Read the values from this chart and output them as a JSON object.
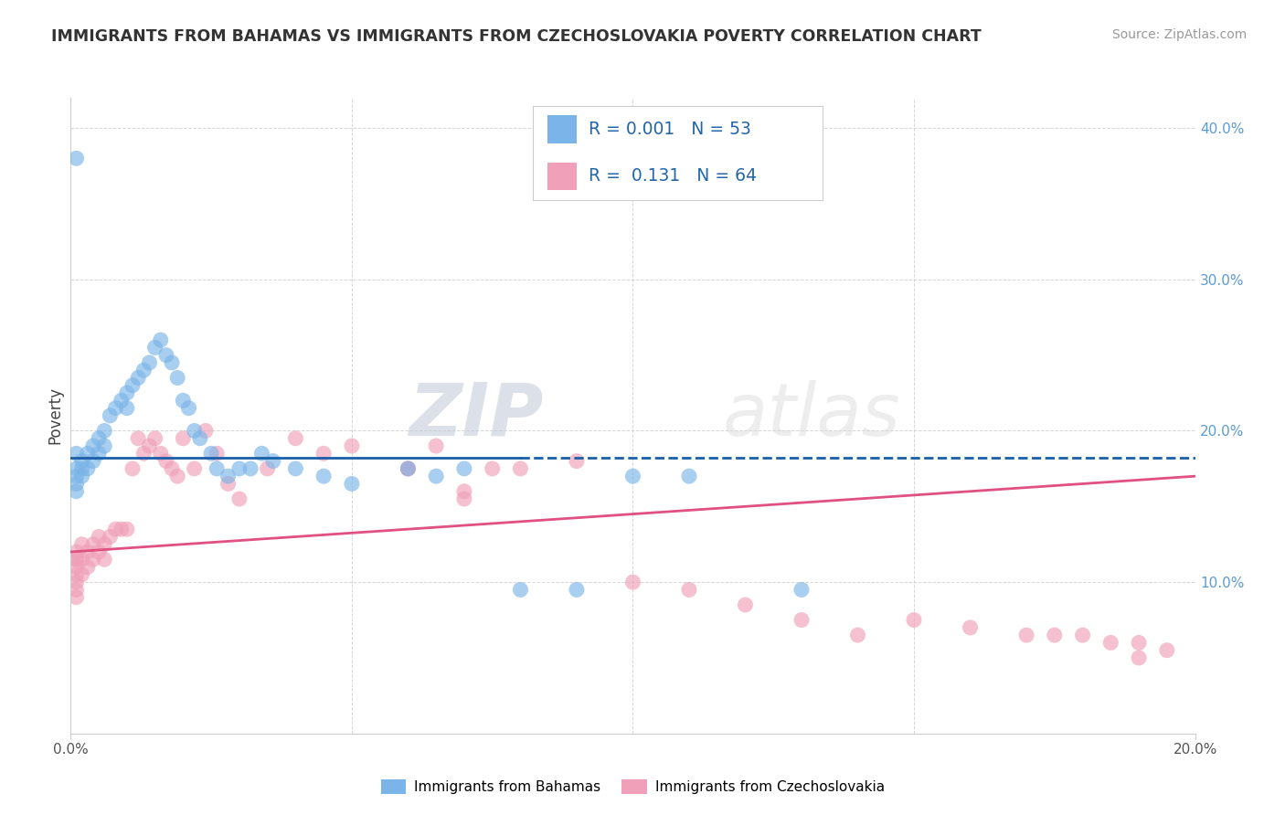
{
  "title": "IMMIGRANTS FROM BAHAMAS VS IMMIGRANTS FROM CZECHOSLOVAKIA POVERTY CORRELATION CHART",
  "source": "Source: ZipAtlas.com",
  "ylabel": "Poverty",
  "xlim": [
    0.0,
    0.2
  ],
  "ylim": [
    0.0,
    0.42
  ],
  "bahamas_color": "#7ab4e8",
  "czech_color": "#f0a0b8",
  "bahamas_line_color": "#1a5fa8",
  "czech_line_color": "#e05080",
  "bahamas_R": "0.001",
  "bahamas_N": "53",
  "czech_R": "0.131",
  "czech_N": "64",
  "legend_label_1": "Immigrants from Bahamas",
  "legend_label_2": "Immigrants from Czechoslovakia",
  "watermark_zip": "ZIP",
  "watermark_atlas": "atlas",
  "background_color": "#ffffff",
  "grid_color": "#cccccc",
  "bahamas_x": [
    0.001,
    0.001,
    0.001,
    0.001,
    0.001,
    0.002,
    0.002,
    0.002,
    0.003,
    0.003,
    0.004,
    0.004,
    0.005,
    0.005,
    0.006,
    0.006,
    0.007,
    0.008,
    0.009,
    0.01,
    0.01,
    0.011,
    0.012,
    0.013,
    0.014,
    0.015,
    0.016,
    0.017,
    0.018,
    0.019,
    0.02,
    0.021,
    0.022,
    0.023,
    0.025,
    0.026,
    0.028,
    0.03,
    0.032,
    0.034,
    0.036,
    0.04,
    0.045,
    0.05,
    0.06,
    0.065,
    0.07,
    0.08,
    0.09,
    0.1,
    0.11,
    0.13,
    0.001
  ],
  "bahamas_y": [
    0.185,
    0.175,
    0.17,
    0.165,
    0.16,
    0.18,
    0.175,
    0.17,
    0.185,
    0.175,
    0.19,
    0.18,
    0.195,
    0.185,
    0.2,
    0.19,
    0.21,
    0.215,
    0.22,
    0.225,
    0.215,
    0.23,
    0.235,
    0.24,
    0.245,
    0.255,
    0.26,
    0.25,
    0.245,
    0.235,
    0.22,
    0.215,
    0.2,
    0.195,
    0.185,
    0.175,
    0.17,
    0.175,
    0.175,
    0.185,
    0.18,
    0.175,
    0.17,
    0.165,
    0.175,
    0.17,
    0.175,
    0.095,
    0.095,
    0.17,
    0.17,
    0.095,
    0.38
  ],
  "czech_x": [
    0.001,
    0.001,
    0.001,
    0.001,
    0.001,
    0.001,
    0.001,
    0.002,
    0.002,
    0.002,
    0.003,
    0.003,
    0.004,
    0.004,
    0.005,
    0.005,
    0.006,
    0.006,
    0.007,
    0.008,
    0.009,
    0.01,
    0.011,
    0.012,
    0.013,
    0.014,
    0.015,
    0.016,
    0.017,
    0.018,
    0.019,
    0.02,
    0.022,
    0.024,
    0.026,
    0.028,
    0.03,
    0.035,
    0.04,
    0.045,
    0.05,
    0.06,
    0.065,
    0.07,
    0.075,
    0.08,
    0.09,
    0.1,
    0.11,
    0.12,
    0.13,
    0.14,
    0.15,
    0.16,
    0.17,
    0.175,
    0.18,
    0.185,
    0.19,
    0.195,
    0.06,
    0.07,
    0.19,
    0.001
  ],
  "czech_y": [
    0.12,
    0.115,
    0.11,
    0.105,
    0.1,
    0.095,
    0.09,
    0.125,
    0.115,
    0.105,
    0.12,
    0.11,
    0.125,
    0.115,
    0.13,
    0.12,
    0.125,
    0.115,
    0.13,
    0.135,
    0.135,
    0.135,
    0.175,
    0.195,
    0.185,
    0.19,
    0.195,
    0.185,
    0.18,
    0.175,
    0.17,
    0.195,
    0.175,
    0.2,
    0.185,
    0.165,
    0.155,
    0.175,
    0.195,
    0.185,
    0.19,
    0.175,
    0.19,
    0.16,
    0.175,
    0.175,
    0.18,
    0.1,
    0.095,
    0.085,
    0.075,
    0.065,
    0.075,
    0.07,
    0.065,
    0.065,
    0.065,
    0.06,
    0.06,
    0.055,
    0.175,
    0.155,
    0.05,
    0.115
  ],
  "bahamas_trend_x": [
    0.0,
    0.2
  ],
  "bahamas_trend_y": [
    0.182,
    0.182
  ],
  "czech_trend_x": [
    0.0,
    0.2
  ],
  "czech_trend_y": [
    0.12,
    0.17
  ]
}
